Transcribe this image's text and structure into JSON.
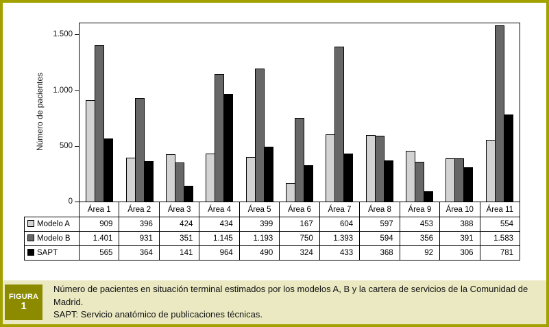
{
  "figure": {
    "label": "FIGURA",
    "number": "1",
    "caption_line1": "Número de pacientes en situación terminal estimados por los modelos A, B y la cartera de servicios de la Comunidad de Madrid.",
    "caption_line2": "SAPT: Servicio anatómico de publicaciones técnicas."
  },
  "chart_data": {
    "type": "bar",
    "title": "",
    "xlabel": "",
    "ylabel": "Número de pacientes",
    "ylim": [
      0,
      1600
    ],
    "grid": false,
    "legend_position": "table-left-column",
    "categories": [
      "Área 1",
      "Área 2",
      "Área 3",
      "Área 4",
      "Área 5",
      "Área 6",
      "Área 7",
      "Área 8",
      "Área 9",
      "Área 10",
      "Área 11"
    ],
    "y_ticks": [
      {
        "value": 0,
        "label": "0"
      },
      {
        "value": 500,
        "label": "500"
      },
      {
        "value": 1000,
        "label": "1.000"
      },
      {
        "value": 1500,
        "label": "1.500"
      }
    ],
    "series": [
      {
        "name": "Modelo A",
        "color": "#d3d3d3",
        "values": [
          909,
          396,
          424,
          434,
          399,
          167,
          604,
          597,
          453,
          388,
          554
        ],
        "display": [
          "909",
          "396",
          "424",
          "434",
          "399",
          "167",
          "604",
          "597",
          "453",
          "388",
          "554"
        ]
      },
      {
        "name": "Modelo B",
        "color": "#676767",
        "values": [
          1401,
          931,
          351,
          1145,
          1193,
          750,
          1393,
          594,
          356,
          391,
          1583
        ],
        "display": [
          "1.401",
          "931",
          "351",
          "1.145",
          "1.193",
          "750",
          "1.393",
          "594",
          "356",
          "391",
          "1.583"
        ]
      },
      {
        "name": "SAPT",
        "color": "#000000",
        "values": [
          565,
          364,
          141,
          964,
          490,
          324,
          433,
          368,
          92,
          306,
          781
        ],
        "display": [
          "565",
          "364",
          "141",
          "964",
          "490",
          "324",
          "433",
          "368",
          "92",
          "306",
          "781"
        ]
      }
    ]
  },
  "colors": {
    "frame_border": "#a3a100",
    "caption_background": "#eae9c2",
    "figura_box_background": "#8c8b00",
    "figura_text": "#ffffff",
    "axis_and_table_lines": "#000000"
  }
}
